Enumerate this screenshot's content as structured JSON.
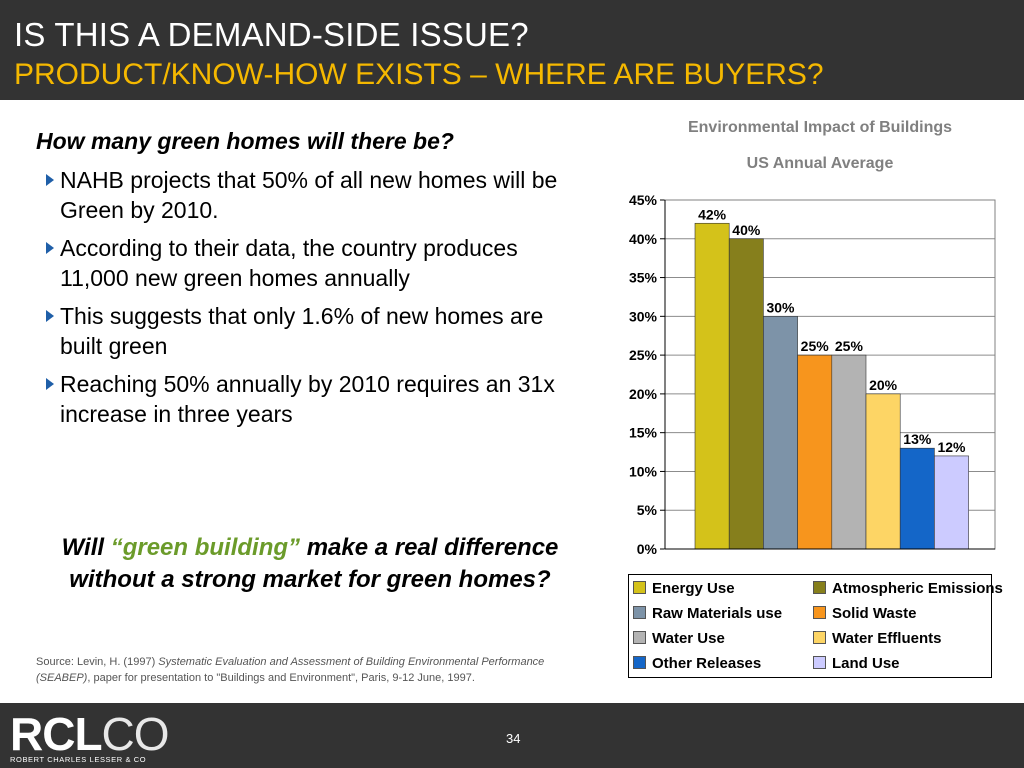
{
  "header": {
    "title": "IS THIS A DEMAND-SIDE ISSUE?",
    "subtitle": "PRODUCT/KNOW-HOW EXISTS – WHERE ARE BUYERS?"
  },
  "body": {
    "question": "How many green homes will there be?",
    "bullets": [
      "NAHB projects that 50% of all new homes will be Green by 2010.",
      "According to their data, the country produces 11,000 new green homes annually",
      "This suggests that only 1.6% of new homes are built green",
      "Reaching 50% annually by 2010 requires an 31x increase in three years"
    ],
    "closing_pre": "Will ",
    "closing_highlight": "“green building”",
    "closing_post": " make a real difference without a strong market for green homes?",
    "source_pre": "Source: Levin, H. (1997) ",
    "source_italic": "Systematic Evaluation and Assessment of Building Environmental Performance (SEABEP)",
    "source_post": ", paper for presentation to \"Buildings and Environment\", Paris, 9-12 June, 1997."
  },
  "footer": {
    "logo_bold": "RCL",
    "logo_thin": "CO",
    "logo_sub": "ROBERT CHARLES LESSER & CO",
    "page_number": "34"
  },
  "chart_data": {
    "type": "bar",
    "title": "Environmental Impact of Buildings",
    "subtitle": "US Annual Average",
    "categories": [
      "Energy Use",
      "Atmospheric Emissions",
      "Raw Materials use",
      "Solid Waste",
      "Water Use",
      "Water Effluents",
      "Other Releases",
      "Land Use"
    ],
    "values": [
      42,
      40,
      30,
      25,
      25,
      20,
      13,
      12
    ],
    "data_labels": [
      "42%",
      "40%",
      "30%",
      "25%",
      "25%",
      "20%",
      "13%",
      "12%"
    ],
    "colors": [
      "#d4c21a",
      "#867f1c",
      "#7d93a8",
      "#f7951d",
      "#b3b3b3",
      "#fdd565",
      "#1466c8",
      "#cccbff"
    ],
    "ylim": [
      0,
      45
    ],
    "yticks": [
      0,
      5,
      10,
      15,
      20,
      25,
      30,
      35,
      40,
      45
    ],
    "ytick_labels": [
      "0%",
      "5%",
      "10%",
      "15%",
      "20%",
      "25%",
      "30%",
      "35%",
      "40%",
      "45%"
    ],
    "grid": true,
    "legend_placement": "bottom"
  }
}
